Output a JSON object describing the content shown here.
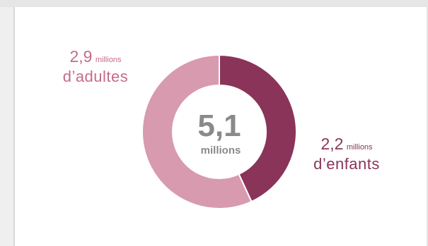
{
  "chart_data": {
    "type": "pie",
    "title": "",
    "center_value": "5,1",
    "center_unit": "millions",
    "slices": [
      {
        "name": "d’enfants",
        "value": 2.2,
        "value_label": "2,2",
        "unit_label": "millions",
        "color": "#8a3459"
      },
      {
        "name": "d’adultes",
        "value": 2.9,
        "value_label": "2,9",
        "unit_label": "millions",
        "color": "#d89aae"
      }
    ],
    "donut": true,
    "start_angle_deg": 0,
    "direction": "clockwise"
  },
  "colors": {
    "center_text": "#8a8a8a",
    "separator": "#ffffff"
  }
}
